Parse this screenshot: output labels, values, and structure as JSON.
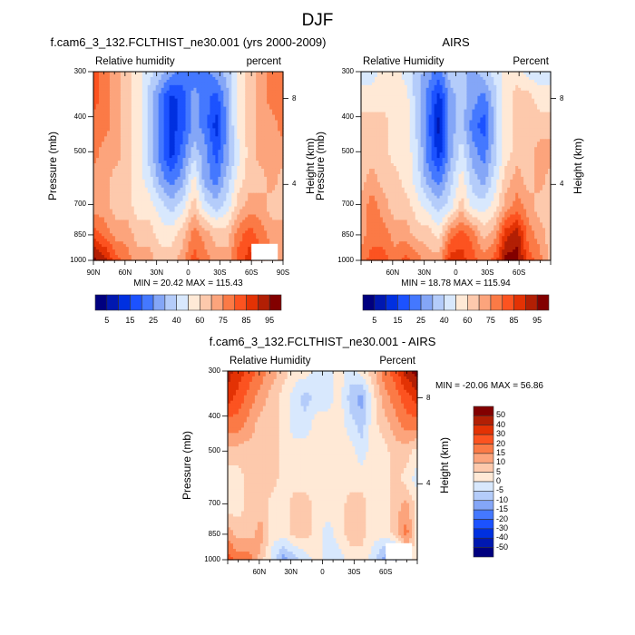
{
  "figure": {
    "title": "DJF"
  },
  "chart_data": [
    {
      "type": "heatmap",
      "id": "model",
      "title": "f.cam6_3_132.FCLTHIST_ne30.001 (yrs 2000-2009)",
      "left_subtitle": "Relative humidity",
      "right_subtitle": "percent",
      "ylabel": "Pressure (mb)",
      "ylabel_right": "Height (km)",
      "xlabel": "",
      "x_ticks": [
        "90N",
        "60N",
        "30N",
        "0",
        "30S",
        "60S",
        "90S"
      ],
      "x_range": [
        90,
        -90
      ],
      "y_ticks": [
        "300",
        "400",
        "500",
        "700",
        "850",
        "1000"
      ],
      "y_ticks_right": [
        "8",
        "4"
      ],
      "y_range": [
        300,
        1000
      ],
      "min": 20.42,
      "max": 115.43,
      "minmax_text": "MIN =  20.42  MAX = 115.43",
      "colorbar": {
        "orientation": "horizontal",
        "labels": [
          "5",
          "15",
          "25",
          "40",
          "60",
          "75",
          "85",
          "95"
        ],
        "levels": [
          5,
          10,
          15,
          20,
          25,
          30,
          40,
          50,
          60,
          70,
          75,
          80,
          85,
          90,
          95
        ]
      },
      "grid": [
        [
          12,
          11,
          10,
          9,
          8,
          7,
          6,
          5,
          4,
          4,
          4,
          5,
          6,
          8,
          9,
          10,
          11,
          11
        ],
        [
          12,
          11,
          10,
          9,
          8,
          6,
          4,
          2,
          3,
          5,
          4,
          3,
          5,
          8,
          9,
          10,
          11,
          11
        ],
        [
          11,
          11,
          10,
          9,
          8,
          6,
          4,
          2,
          3,
          5,
          4,
          2,
          5,
          8,
          9,
          10,
          10,
          11
        ],
        [
          11,
          10,
          10,
          9,
          8,
          6,
          4,
          2,
          4,
          6,
          5,
          3,
          5,
          7,
          9,
          10,
          10,
          10
        ],
        [
          10,
          10,
          9,
          9,
          8,
          7,
          5,
          4,
          5,
          8,
          5,
          4,
          6,
          8,
          9,
          9,
          10,
          9
        ],
        [
          10,
          10,
          9,
          9,
          8,
          8,
          7,
          6,
          7,
          9,
          7,
          6,
          7,
          9,
          10,
          10,
          9,
          9
        ],
        [
          12,
          11,
          10,
          10,
          9,
          9,
          8,
          8,
          9,
          11,
          10,
          9,
          9,
          11,
          12,
          11,
          10,
          10
        ],
        [
          15,
          14,
          12,
          11,
          10,
          10,
          9,
          9,
          10,
          12,
          11,
          10,
          10,
          12,
          13,
          12,
          11,
          10
        ]
      ],
      "missing_region": "60S-85S below 900 mb"
    },
    {
      "type": "heatmap",
      "id": "obs",
      "title": "AIRS",
      "left_subtitle": "Relative Humidity",
      "right_subtitle": "Percent",
      "ylabel": "Pressure (mb)",
      "ylabel_right": "Height (km)",
      "x_ticks": [
        "60N",
        "30N",
        "0",
        "30S",
        "60S"
      ],
      "x_range": [
        90,
        -90
      ],
      "y_ticks": [
        "300",
        "400",
        "500",
        "700",
        "850",
        "1000"
      ],
      "y_ticks_right": [
        "8",
        "4"
      ],
      "y_range": [
        300,
        1000
      ],
      "min": 18.78,
      "max": 115.94,
      "minmax_text": "MIN =  18.78  MAX = 115.94",
      "colorbar": {
        "orientation": "horizontal",
        "labels": [
          "5",
          "15",
          "25",
          "40",
          "60",
          "75",
          "85",
          "95"
        ],
        "levels": [
          5,
          10,
          15,
          20,
          25,
          30,
          40,
          50,
          60,
          70,
          75,
          80,
          85,
          90,
          95
        ]
      },
      "grid": [
        [
          7,
          7,
          8,
          8,
          7,
          6,
          5,
          4,
          6,
          6,
          5,
          6,
          7,
          8,
          8,
          7,
          7,
          7
        ],
        [
          8,
          8,
          8,
          8,
          8,
          6,
          4,
          2,
          5,
          6,
          5,
          4,
          6,
          8,
          9,
          9,
          8,
          8
        ],
        [
          9,
          9,
          9,
          8,
          8,
          6,
          4,
          1,
          5,
          6,
          4,
          3,
          6,
          8,
          9,
          9,
          9,
          9
        ],
        [
          9,
          9,
          9,
          8,
          8,
          7,
          4,
          2,
          5,
          7,
          5,
          4,
          6,
          8,
          9,
          9,
          10,
          10
        ],
        [
          9,
          10,
          9,
          9,
          8,
          7,
          5,
          4,
          6,
          8,
          6,
          5,
          7,
          9,
          10,
          9,
          10,
          9
        ],
        [
          10,
          11,
          10,
          9,
          9,
          8,
          7,
          6,
          7,
          9,
          7,
          7,
          8,
          10,
          11,
          10,
          9,
          9
        ],
        [
          10,
          11,
          11,
          10,
          10,
          9,
          9,
          8,
          11,
          12,
          11,
          9,
          10,
          13,
          14,
          11,
          10,
          9
        ],
        [
          11,
          12,
          12,
          11,
          12,
          11,
          10,
          10,
          13,
          13,
          12,
          11,
          12,
          15,
          15,
          12,
          11,
          9
        ]
      ]
    },
    {
      "type": "heatmap",
      "id": "diff",
      "title": "f.cam6_3_132.FCLTHIST_ne30.001 - AIRS",
      "left_subtitle": "Relative Humidity",
      "right_subtitle": "Percent",
      "ylabel": "Pressure (mb)",
      "ylabel_right": "Height (km)",
      "x_ticks": [
        "60N",
        "30N",
        "0",
        "30S",
        "60S"
      ],
      "x_range": [
        90,
        -90
      ],
      "y_ticks": [
        "300",
        "400",
        "500",
        "700",
        "850",
        "1000"
      ],
      "y_ticks_right": [
        "8",
        "4"
      ],
      "y_range": [
        300,
        1000
      ],
      "min": -20.06,
      "max": 56.86,
      "minmax_text": "MIN = -20.06  MAX =  56.86",
      "colorbar": {
        "orientation": "vertical",
        "labels": [
          "50",
          "40",
          "30",
          "20",
          "15",
          "10",
          "5",
          "0",
          "-5",
          "-10",
          "-15",
          "-20",
          "-30",
          "-40",
          "-50"
        ],
        "levels": [
          -50,
          -40,
          -30,
          -20,
          -15,
          -10,
          -5,
          0,
          5,
          10,
          15,
          20,
          30,
          40,
          50
        ]
      },
      "grid": [
        [
          14,
          13,
          12,
          11,
          10,
          9,
          8,
          8,
          7,
          7,
          8,
          7,
          8,
          9,
          11,
          12,
          14,
          15
        ],
        [
          13,
          12,
          11,
          10,
          9,
          8,
          7,
          6,
          7,
          7,
          8,
          6,
          5,
          8,
          10,
          11,
          12,
          13
        ],
        [
          11,
          11,
          10,
          9,
          9,
          8,
          7,
          7,
          8,
          8,
          8,
          7,
          6,
          8,
          9,
          10,
          11,
          11
        ],
        [
          9,
          9,
          9,
          9,
          9,
          8,
          8,
          8,
          8,
          8,
          8,
          8,
          7,
          8,
          8,
          9,
          9,
          8
        ],
        [
          8,
          8,
          9,
          9,
          9,
          8,
          8,
          8,
          8,
          8,
          8,
          8,
          8,
          8,
          8,
          9,
          8,
          7
        ],
        [
          8,
          8,
          9,
          9,
          8,
          8,
          9,
          9,
          8,
          8,
          8,
          9,
          9,
          8,
          8,
          9,
          10,
          8
        ],
        [
          10,
          9,
          9,
          10,
          8,
          8,
          9,
          9,
          8,
          7,
          8,
          9,
          9,
          8,
          8,
          9,
          11,
          8
        ],
        [
          12,
          11,
          11,
          9,
          7,
          5,
          6,
          7,
          8,
          7,
          7,
          8,
          8,
          7,
          5,
          4,
          8,
          8
        ]
      ],
      "missing_region": "60S-85S below 900 mb"
    }
  ],
  "palette": [
    "#00007f",
    "#0018b0",
    "#0030e0",
    "#1c52ff",
    "#4478ff",
    "#84a6f7",
    "#b4ccfa",
    "#d8e8fd",
    "#ffe9d6",
    "#fdc9ac",
    "#fca47c",
    "#fb7a46",
    "#fc5320",
    "#e33204",
    "#b21f04",
    "#820000"
  ]
}
